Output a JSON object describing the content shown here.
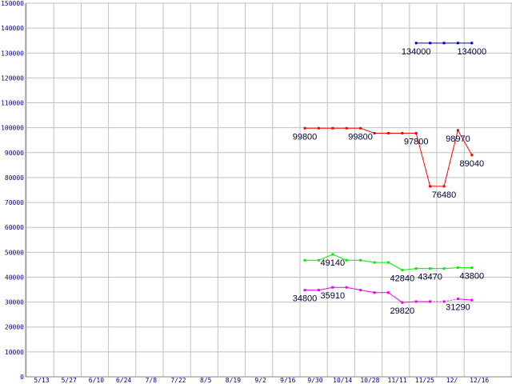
{
  "chart_data": {
    "type": "line",
    "title": "",
    "xlabel": "",
    "ylabel": "",
    "ylim": [
      0,
      150000
    ],
    "grid": true,
    "y_ticks": [
      0,
      10000,
      20000,
      30000,
      40000,
      50000,
      60000,
      70000,
      80000,
      90000,
      100000,
      110000,
      120000,
      130000,
      140000,
      150000
    ],
    "x_tick_labels": [
      "5/13",
      "5/27",
      "6/10",
      "6/24",
      "7/8",
      "7/22",
      "8/5",
      "8/19",
      "9/2",
      "9/16",
      "9/30",
      "10/14",
      "10/28",
      "11/11",
      "11/25",
      "12/",
      "12/16"
    ],
    "x": [
      "9/16",
      "9/23",
      "9/30",
      "10/7",
      "10/14",
      "10/21",
      "10/28",
      "11/4",
      "11/11",
      "11/18",
      "11/25",
      "12/2",
      "12/9"
    ],
    "series": [
      {
        "color": "#0000cc",
        "values": [
          null,
          null,
          null,
          null,
          null,
          null,
          null,
          null,
          134000,
          134000,
          134000,
          134000,
          134000
        ]
      },
      {
        "color": "#ff0000",
        "values": [
          99800,
          99800,
          99800,
          99800,
          99800,
          97800,
          97800,
          97800,
          97800,
          76480,
          76480,
          98970,
          89040
        ]
      },
      {
        "color": "#00ee00",
        "values": [
          46800,
          46800,
          49140,
          46800,
          46800,
          45900,
          45900,
          42840,
          43470,
          43470,
          43470,
          43800,
          43800
        ]
      },
      {
        "color": "#ee00ee",
        "values": [
          34800,
          34800,
          35910,
          35910,
          34800,
          33800,
          33800,
          29820,
          30200,
          30200,
          30200,
          31290,
          30800
        ]
      }
    ],
    "data_labels": [
      {
        "text": "134000",
        "series": 0,
        "index": 8,
        "pos": "below"
      },
      {
        "text": "134000",
        "series": 0,
        "index": 12,
        "pos": "below"
      },
      {
        "text": "99800",
        "series": 1,
        "index": 0,
        "pos": "below"
      },
      {
        "text": "99800",
        "series": 1,
        "index": 4,
        "pos": "below"
      },
      {
        "text": "97800",
        "series": 1,
        "index": 8,
        "pos": "below"
      },
      {
        "text": "76480",
        "series": 1,
        "index": 10,
        "pos": "below"
      },
      {
        "text": "98970",
        "series": 1,
        "index": 11,
        "pos": "below"
      },
      {
        "text": "89040",
        "series": 1,
        "index": 12,
        "pos": "below"
      },
      {
        "text": "49140",
        "series": 2,
        "index": 2,
        "pos": "below"
      },
      {
        "text": "42840",
        "series": 2,
        "index": 7,
        "pos": "below"
      },
      {
        "text": "43470",
        "series": 2,
        "index": 9,
        "pos": "below"
      },
      {
        "text": "43800",
        "series": 2,
        "index": 12,
        "pos": "below"
      },
      {
        "text": "34800",
        "series": 3,
        "index": 0,
        "pos": "below"
      },
      {
        "text": "35910",
        "series": 3,
        "index": 2,
        "pos": "below"
      },
      {
        "text": "29820",
        "series": 3,
        "index": 7,
        "pos": "below"
      },
      {
        "text": "31290",
        "series": 3,
        "index": 11,
        "pos": "below"
      }
    ],
    "dashed_segments": [
      {
        "series": 3,
        "from": 9,
        "to": 11
      }
    ]
  }
}
